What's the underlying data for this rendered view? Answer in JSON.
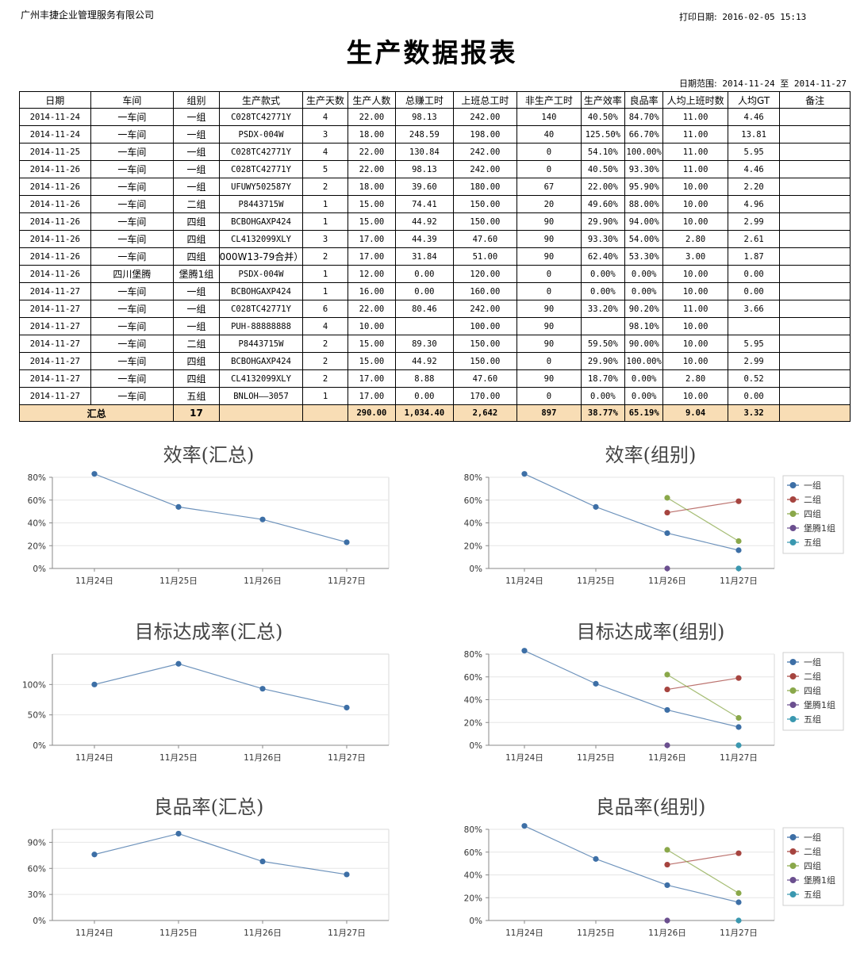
{
  "header": {
    "company": "广州丰捷企业管理服务有限公司",
    "print_label": "打印日期:",
    "print_value": "2016-02-05 15:13",
    "title": "生产数据报表",
    "range_label": "日期范围:",
    "range_start": "2014-11-24",
    "range_to": "至",
    "range_end": "2014-11-27"
  },
  "table": {
    "columns": [
      "日期",
      "车间",
      "组别",
      "生产款式",
      "生产天数",
      "生产人数",
      "总赚工时",
      "上班总工时",
      "非生产工时",
      "生产效率",
      "良品率",
      "人均上班时数",
      "人均GT",
      "备注"
    ],
    "rows": [
      [
        "2014-11-24",
        "一车间",
        "一组",
        "C028TC42771Y",
        "4",
        "22.00",
        "98.13",
        "242.00",
        "140",
        "40.50%",
        "84.70%",
        "11.00",
        "4.46",
        ""
      ],
      [
        "2014-11-24",
        "一车间",
        "一组",
        "PSDX-004W",
        "3",
        "18.00",
        "248.59",
        "198.00",
        "40",
        "125.50%",
        "66.70%",
        "11.00",
        "13.81",
        ""
      ],
      [
        "2014-11-25",
        "一车间",
        "一组",
        "C028TC42771Y",
        "4",
        "22.00",
        "130.84",
        "242.00",
        "0",
        "54.10%",
        "100.00%",
        "11.00",
        "5.95",
        ""
      ],
      [
        "2014-11-26",
        "一车间",
        "一组",
        "C028TC42771Y",
        "5",
        "22.00",
        "98.13",
        "242.00",
        "0",
        "40.50%",
        "93.30%",
        "11.00",
        "4.46",
        ""
      ],
      [
        "2014-11-26",
        "一车间",
        "一组",
        "UFUWY502587Y",
        "2",
        "18.00",
        "39.60",
        "180.00",
        "67",
        "22.00%",
        "95.90%",
        "10.00",
        "2.20",
        ""
      ],
      [
        "2014-11-26",
        "一车间",
        "二组",
        "P8443715W",
        "1",
        "15.00",
        "74.41",
        "150.00",
        "20",
        "49.60%",
        "88.00%",
        "10.00",
        "4.96",
        ""
      ],
      [
        "2014-11-26",
        "一车间",
        "四组",
        "BCBOHGAXP424",
        "1",
        "15.00",
        "44.92",
        "150.00",
        "90",
        "29.90%",
        "94.00%",
        "10.00",
        "2.99",
        ""
      ],
      [
        "2014-11-26",
        "一车间",
        "四组",
        "CL4132099XLY",
        "3",
        "17.00",
        "44.39",
        "47.60",
        "90",
        "93.30%",
        "54.00%",
        "2.80",
        "2.61",
        ""
      ],
      [
        "2014-11-26",
        "一车间",
        "四组",
        "000W13-79合并）",
        "2",
        "17.00",
        "31.84",
        "51.00",
        "90",
        "62.40%",
        "53.30%",
        "3.00",
        "1.87",
        ""
      ],
      [
        "2014-11-26",
        "四川堡腾",
        "堡腾1组",
        "PSDX-004W",
        "1",
        "12.00",
        "0.00",
        "120.00",
        "0",
        "0.00%",
        "0.00%",
        "10.00",
        "0.00",
        ""
      ],
      [
        "2014-11-27",
        "一车间",
        "一组",
        "BCBOHGAXP424",
        "1",
        "16.00",
        "0.00",
        "160.00",
        "0",
        "0.00%",
        "0.00%",
        "10.00",
        "0.00",
        ""
      ],
      [
        "2014-11-27",
        "一车间",
        "一组",
        "C028TC42771Y",
        "6",
        "22.00",
        "80.46",
        "242.00",
        "90",
        "33.20%",
        "90.20%",
        "11.00",
        "3.66",
        ""
      ],
      [
        "2014-11-27",
        "一车间",
        "一组",
        "PUH-88888888",
        "4",
        "10.00",
        "",
        "100.00",
        "90",
        "",
        "98.10%",
        "10.00",
        "",
        ""
      ],
      [
        "2014-11-27",
        "一车间",
        "二组",
        "P8443715W",
        "2",
        "15.00",
        "89.30",
        "150.00",
        "90",
        "59.50%",
        "90.00%",
        "10.00",
        "5.95",
        ""
      ],
      [
        "2014-11-27",
        "一车间",
        "四组",
        "BCBOHGAXP424",
        "2",
        "15.00",
        "44.92",
        "150.00",
        "0",
        "29.90%",
        "100.00%",
        "10.00",
        "2.99",
        ""
      ],
      [
        "2014-11-27",
        "一车间",
        "四组",
        "CL4132099XLY",
        "2",
        "17.00",
        "8.88",
        "47.60",
        "90",
        "18.70%",
        "0.00%",
        "2.80",
        "0.52",
        ""
      ],
      [
        "2014-11-27",
        "一车间",
        "五组",
        "BNLOH——3057",
        "1",
        "17.00",
        "0.00",
        "170.00",
        "0",
        "0.00%",
        "0.00%",
        "10.00",
        "0.00",
        ""
      ]
    ],
    "total": [
      "汇总",
      "",
      "17",
      "",
      "",
      "290.00",
      "1,034.40",
      "2,642",
      "897",
      "38.77%",
      "65.19%",
      "9.04",
      "3.32",
      ""
    ]
  },
  "chart_data": [
    {
      "type": "line",
      "title": "效率(汇总)",
      "categories": [
        "11月24日",
        "11月25日",
        "11月26日",
        "11月27日"
      ],
      "ylim": [
        0,
        0.8
      ],
      "yticks": [
        0,
        0.2,
        0.4,
        0.6,
        0.8
      ],
      "ytick_labels": [
        "0%",
        "20%",
        "40%",
        "60%",
        "80%"
      ],
      "series": [
        {
          "values": [
            0.83,
            0.54,
            0.43,
            0.23
          ],
          "color": "#3d6fa6"
        }
      ],
      "legend": []
    },
    {
      "type": "line",
      "title": "效率(组别)",
      "categories": [
        "11月24日",
        "11月25日",
        "11月26日",
        "11月27日"
      ],
      "ylim": [
        0,
        0.8
      ],
      "yticks": [
        0,
        0.2,
        0.4,
        0.6,
        0.8
      ],
      "ytick_labels": [
        "0%",
        "20%",
        "40%",
        "60%",
        "80%"
      ],
      "series": [
        {
          "name": "一组",
          "values": [
            0.83,
            0.54,
            0.31,
            0.16
          ],
          "color": "#3d6fa6"
        },
        {
          "name": "二组",
          "values": [
            null,
            null,
            0.49,
            0.59
          ],
          "color": "#a6443f"
        },
        {
          "name": "四组",
          "values": [
            null,
            null,
            0.62,
            0.24
          ],
          "color": "#8aa84a"
        },
        {
          "name": "堡腾1组",
          "values": [
            null,
            null,
            0.0,
            null
          ],
          "color": "#6b4f8f"
        },
        {
          "name": "五组",
          "values": [
            null,
            null,
            null,
            0.0
          ],
          "color": "#3a98b0"
        }
      ],
      "legend": [
        "一组",
        "二组",
        "四组",
        "堡腾1组",
        "五组"
      ]
    },
    {
      "type": "line",
      "title": "目标达成率(汇总)",
      "categories": [
        "11月24日",
        "11月25日",
        "11月26日",
        "11月27日"
      ],
      "ylim": [
        0,
        1.5
      ],
      "yticks": [
        0,
        0.5,
        1.0
      ],
      "ytick_labels": [
        "0%",
        "50%",
        "100%"
      ],
      "series": [
        {
          "values": [
            1.0,
            1.34,
            0.93,
            0.62
          ],
          "color": "#3d6fa6"
        }
      ],
      "legend": []
    },
    {
      "type": "line",
      "title": "目标达成率(组别)",
      "categories": [
        "11月24日",
        "11月25日",
        "11月26日",
        "11月27日"
      ],
      "ylim": [
        0,
        0.8
      ],
      "yticks": [
        0,
        0.2,
        0.4,
        0.6,
        0.8
      ],
      "ytick_labels": [
        "0%",
        "20%",
        "40%",
        "60%",
        "80%"
      ],
      "series": [
        {
          "name": "一组",
          "values": [
            0.83,
            0.54,
            0.31,
            0.16
          ],
          "color": "#3d6fa6"
        },
        {
          "name": "二组",
          "values": [
            null,
            null,
            0.49,
            0.59
          ],
          "color": "#a6443f"
        },
        {
          "name": "四组",
          "values": [
            null,
            null,
            0.62,
            0.24
          ],
          "color": "#8aa84a"
        },
        {
          "name": "堡腾1组",
          "values": [
            null,
            null,
            0.0,
            null
          ],
          "color": "#6b4f8f"
        },
        {
          "name": "五组",
          "values": [
            null,
            null,
            null,
            0.0
          ],
          "color": "#3a98b0"
        }
      ],
      "legend": [
        "一组",
        "二组",
        "四组",
        "堡腾1组",
        "五组"
      ]
    },
    {
      "type": "line",
      "title": "良品率(汇总)",
      "categories": [
        "11月24日",
        "11月25日",
        "11月26日",
        "11月27日"
      ],
      "ylim": [
        0,
        1.05
      ],
      "yticks": [
        0,
        0.3,
        0.6,
        0.9
      ],
      "ytick_labels": [
        "0%",
        "30%",
        "60%",
        "90%"
      ],
      "series": [
        {
          "values": [
            0.76,
            1.0,
            0.68,
            0.53
          ],
          "color": "#3d6fa6"
        }
      ],
      "legend": []
    },
    {
      "type": "line",
      "title": "良品率(组别)",
      "categories": [
        "11月24日",
        "11月25日",
        "11月26日",
        "11月27日"
      ],
      "ylim": [
        0,
        0.8
      ],
      "yticks": [
        0,
        0.2,
        0.4,
        0.6,
        0.8
      ],
      "ytick_labels": [
        "0%",
        "20%",
        "40%",
        "60%",
        "80%"
      ],
      "series": [
        {
          "name": "一组",
          "values": [
            0.83,
            0.54,
            0.31,
            0.16
          ],
          "color": "#3d6fa6"
        },
        {
          "name": "二组",
          "values": [
            null,
            null,
            0.49,
            0.59
          ],
          "color": "#a6443f"
        },
        {
          "name": "四组",
          "values": [
            null,
            null,
            0.62,
            0.24
          ],
          "color": "#8aa84a"
        },
        {
          "name": "堡腾1组",
          "values": [
            null,
            null,
            0.0,
            null
          ],
          "color": "#6b4f8f"
        },
        {
          "name": "五组",
          "values": [
            null,
            null,
            null,
            0.0
          ],
          "color": "#3a98b0"
        }
      ],
      "legend": [
        "一组",
        "二组",
        "四组",
        "堡腾1组",
        "五组"
      ]
    }
  ]
}
